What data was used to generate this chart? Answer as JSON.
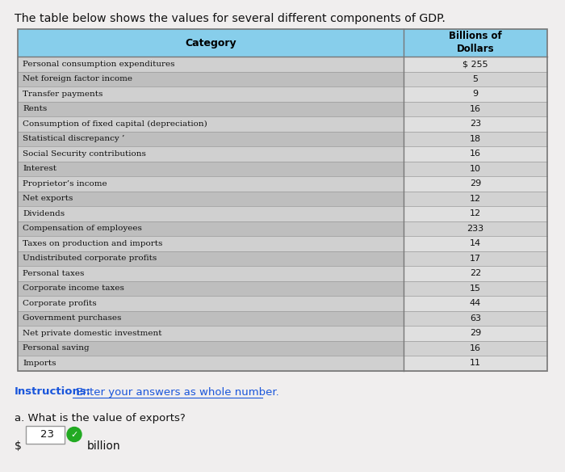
{
  "title": "The table below shows the values for several different components of GDP.",
  "header_col1": "Category",
  "header_col2": "Billions of\nDollars",
  "rows": [
    [
      "Personal consumption expenditures",
      "$ 255"
    ],
    [
      "Net foreign factor income",
      "5"
    ],
    [
      "Transfer payments",
      "9"
    ],
    [
      "Rents",
      "16"
    ],
    [
      "Consumption of fixed capital (depreciation)",
      "23"
    ],
    [
      "Statistical discrepancy ’",
      "18"
    ],
    [
      "Social Security contributions",
      "16"
    ],
    [
      "Interest",
      "10"
    ],
    [
      "Proprietor’s income",
      "29"
    ],
    [
      "Net exports",
      "12"
    ],
    [
      "Dividends",
      "12"
    ],
    [
      "Compensation of employees",
      "233"
    ],
    [
      "Taxes on production and imports",
      "14"
    ],
    [
      "Undistributed corporate profits",
      "17"
    ],
    [
      "Personal taxes",
      "22"
    ],
    [
      "Corporate income taxes",
      "15"
    ],
    [
      "Corporate profits",
      "44"
    ],
    [
      "Government purchases",
      "63"
    ],
    [
      "Net private domestic investment",
      "29"
    ],
    [
      "Personal saving",
      "16"
    ],
    [
      "Imports",
      "11"
    ]
  ],
  "instruction_bold": "Instructions:",
  "instruction_rest": " Enter your answers as whole number.",
  "question_text": "a. What is the value of exports?",
  "answer_label": "$",
  "answer_value": "23",
  "answer_unit": "billion",
  "header_bg": "#87CEEB",
  "row_bg_even": "#d0d0d0",
  "row_bg_odd": "#bebebe",
  "val_bg_even": "#e0e0e0",
  "val_bg_odd": "#d2d2d2",
  "table_border": "#777777",
  "instruction_color": "#1a56db",
  "bg_color": "#f0eeee",
  "font_color": "#111111"
}
